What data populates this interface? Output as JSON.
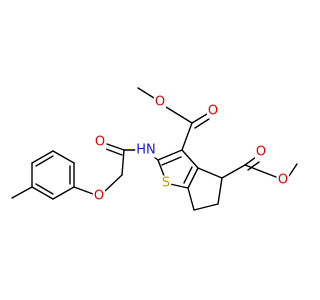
{
  "atoms": [
    "O",
    "O",
    "O",
    "O",
    "HN",
    "O",
    "O",
    "S"
  ]
}
